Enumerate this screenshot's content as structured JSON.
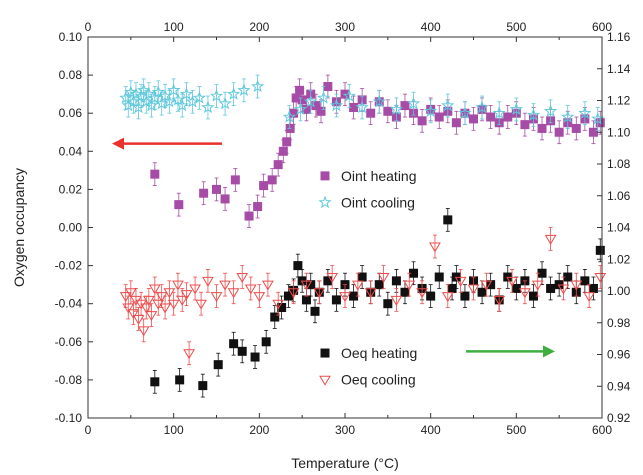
{
  "chart_data": {
    "type": "scatter",
    "xlabel": "Temperature (°C)",
    "ylabel": "Oxygen occupancy",
    "x_range": [
      0,
      600
    ],
    "y_left_range": [
      -0.1,
      0.1
    ],
    "y_right_range": [
      0.92,
      1.16
    ],
    "x_ticks": [
      "0",
      "100",
      "200",
      "300",
      "400",
      "500",
      "600"
    ],
    "y_left_ticks": [
      "-0.10",
      "-0.08",
      "-0.06",
      "-0.04",
      "-0.02",
      "0.00",
      "0.02",
      "0.04",
      "0.06",
      "0.08",
      "0.10"
    ],
    "y_right_ticks": [
      "0.92",
      "0.94",
      "0.96",
      "0.98",
      "1.00",
      "1.02",
      "1.04",
      "1.06",
      "1.08",
      "1.10",
      "1.12",
      "1.14",
      "1.16"
    ],
    "grid": false,
    "legend_placement": "center-right",
    "arrows": [
      {
        "direction": "left",
        "color": "#e8322b",
        "meaning": "left axis"
      },
      {
        "direction": "right",
        "color": "#3fae3f",
        "meaning": "right axis"
      }
    ],
    "series": [
      {
        "name": "Oint heating",
        "marker": "square",
        "filled": true,
        "color": "#a64ca6",
        "axis": "left",
        "points": [
          [
            78,
            0.028
          ],
          [
            106,
            0.012
          ],
          [
            135,
            0.018
          ],
          [
            150,
            0.02
          ],
          [
            160,
            0.015
          ],
          [
            172,
            0.025
          ],
          [
            188,
            0.006
          ],
          [
            198,
            0.011
          ],
          [
            205,
            0.022
          ],
          [
            215,
            0.025
          ],
          [
            222,
            0.033
          ],
          [
            228,
            0.04
          ],
          [
            232,
            0.045
          ],
          [
            236,
            0.052
          ],
          [
            240,
            0.06
          ],
          [
            243,
            0.068
          ],
          [
            247,
            0.072
          ],
          [
            250,
            0.067
          ],
          [
            255,
            0.062
          ],
          [
            260,
            0.07
          ],
          [
            266,
            0.064
          ],
          [
            272,
            0.061
          ],
          [
            280,
            0.074
          ],
          [
            290,
            0.066
          ],
          [
            300,
            0.07
          ],
          [
            310,
            0.063
          ],
          [
            320,
            0.067
          ],
          [
            330,
            0.06
          ],
          [
            340,
            0.066
          ],
          [
            350,
            0.061
          ],
          [
            360,
            0.058
          ],
          [
            370,
            0.064
          ],
          [
            380,
            0.06
          ],
          [
            390,
            0.056
          ],
          [
            400,
            0.062
          ],
          [
            410,
            0.058
          ],
          [
            420,
            0.061
          ],
          [
            430,
            0.055
          ],
          [
            440,
            0.06
          ],
          [
            450,
            0.057
          ],
          [
            460,
            0.062
          ],
          [
            470,
            0.058
          ],
          [
            480,
            0.055
          ],
          [
            490,
            0.058
          ],
          [
            500,
            0.06
          ],
          [
            510,
            0.054
          ],
          [
            520,
            0.057
          ],
          [
            530,
            0.052
          ],
          [
            540,
            0.056
          ],
          [
            550,
            0.05
          ],
          [
            560,
            0.055
          ],
          [
            570,
            0.052
          ],
          [
            580,
            0.057
          ],
          [
            590,
            0.05
          ],
          [
            598,
            0.055
          ]
        ]
      },
      {
        "name": "Oint cooling",
        "marker": "star",
        "filled": false,
        "color": "#5ec8dc",
        "axis": "left",
        "points": [
          [
            44,
            0.068
          ],
          [
            47,
            0.064
          ],
          [
            50,
            0.071
          ],
          [
            53,
            0.066
          ],
          [
            56,
            0.07
          ],
          [
            59,
            0.063
          ],
          [
            62,
            0.069
          ],
          [
            65,
            0.072
          ],
          [
            68,
            0.066
          ],
          [
            71,
            0.07
          ],
          [
            74,
            0.064
          ],
          [
            78,
            0.068
          ],
          [
            82,
            0.071
          ],
          [
            86,
            0.065
          ],
          [
            90,
            0.069
          ],
          [
            95,
            0.066
          ],
          [
            100,
            0.072
          ],
          [
            105,
            0.067
          ],
          [
            110,
            0.064
          ],
          [
            115,
            0.07
          ],
          [
            122,
            0.066
          ],
          [
            130,
            0.068
          ],
          [
            140,
            0.063
          ],
          [
            150,
            0.069
          ],
          [
            160,
            0.065
          ],
          [
            170,
            0.07
          ],
          [
            182,
            0.072
          ],
          [
            198,
            0.074
          ],
          [
            235,
            0.058
          ],
          [
            248,
            0.062
          ],
          [
            260,
            0.066
          ],
          [
            275,
            0.068
          ],
          [
            290,
            0.064
          ],
          [
            305,
            0.069
          ],
          [
            320,
            0.063
          ],
          [
            340,
            0.066
          ],
          [
            360,
            0.062
          ],
          [
            380,
            0.065
          ],
          [
            400,
            0.061
          ],
          [
            420,
            0.064
          ],
          [
            440,
            0.06
          ],
          [
            460,
            0.063
          ],
          [
            480,
            0.06
          ],
          [
            500,
            0.062
          ],
          [
            520,
            0.059
          ],
          [
            540,
            0.061
          ],
          [
            560,
            0.058
          ],
          [
            580,
            0.06
          ],
          [
            595,
            0.057
          ]
        ]
      },
      {
        "name": "Oeq heating",
        "marker": "square",
        "filled": true,
        "color": "#111111",
        "axis": "left",
        "points": [
          [
            78,
            -0.081
          ],
          [
            107,
            -0.08
          ],
          [
            134,
            -0.083
          ],
          [
            152,
            -0.072
          ],
          [
            170,
            -0.061
          ],
          [
            180,
            -0.065
          ],
          [
            195,
            -0.068
          ],
          [
            208,
            -0.06
          ],
          [
            218,
            -0.047
          ],
          [
            226,
            -0.042
          ],
          [
            234,
            -0.036
          ],
          [
            240,
            -0.033
          ],
          [
            245,
            -0.02
          ],
          [
            250,
            -0.028
          ],
          [
            255,
            -0.038
          ],
          [
            260,
            -0.03
          ],
          [
            265,
            -0.044
          ],
          [
            270,
            -0.034
          ],
          [
            280,
            -0.028
          ],
          [
            290,
            -0.038
          ],
          [
            300,
            -0.03
          ],
          [
            310,
            -0.036
          ],
          [
            320,
            -0.026
          ],
          [
            330,
            -0.034
          ],
          [
            340,
            -0.03
          ],
          [
            350,
            -0.04
          ],
          [
            360,
            -0.028
          ],
          [
            370,
            -0.034
          ],
          [
            380,
            -0.024
          ],
          [
            390,
            -0.032
          ],
          [
            400,
            -0.036
          ],
          [
            410,
            -0.026
          ],
          [
            420,
            0.004
          ],
          [
            425,
            -0.032
          ],
          [
            430,
            -0.026
          ],
          [
            440,
            -0.036
          ],
          [
            450,
            -0.028
          ],
          [
            460,
            -0.034
          ],
          [
            470,
            -0.03
          ],
          [
            480,
            -0.038
          ],
          [
            490,
            -0.026
          ],
          [
            500,
            -0.032
          ],
          [
            510,
            -0.028
          ],
          [
            520,
            -0.036
          ],
          [
            530,
            -0.024
          ],
          [
            540,
            -0.032
          ],
          [
            550,
            -0.03
          ],
          [
            560,
            -0.026
          ],
          [
            570,
            -0.034
          ],
          [
            580,
            -0.028
          ],
          [
            590,
            -0.032
          ],
          [
            598,
            -0.012
          ]
        ]
      },
      {
        "name": "Oeq cooling",
        "marker": "triangle-down",
        "filled": false,
        "color": "#ee4c4c",
        "axis": "left",
        "points": [
          [
            44,
            -0.036
          ],
          [
            47,
            -0.042
          ],
          [
            50,
            -0.034
          ],
          [
            53,
            -0.045
          ],
          [
            56,
            -0.038
          ],
          [
            59,
            -0.048
          ],
          [
            62,
            -0.04
          ],
          [
            65,
            -0.054
          ],
          [
            68,
            -0.042
          ],
          [
            71,
            -0.038
          ],
          [
            74,
            -0.046
          ],
          [
            78,
            -0.032
          ],
          [
            82,
            -0.04
          ],
          [
            86,
            -0.036
          ],
          [
            90,
            -0.042
          ],
          [
            95,
            -0.034
          ],
          [
            100,
            -0.04
          ],
          [
            105,
            -0.03
          ],
          [
            110,
            -0.038
          ],
          [
            115,
            -0.035
          ],
          [
            118,
            -0.066
          ],
          [
            125,
            -0.032
          ],
          [
            132,
            -0.04
          ],
          [
            140,
            -0.028
          ],
          [
            150,
            -0.036
          ],
          [
            160,
            -0.03
          ],
          [
            170,
            -0.034
          ],
          [
            180,
            -0.026
          ],
          [
            190,
            -0.032
          ],
          [
            200,
            -0.036
          ],
          [
            210,
            -0.03
          ],
          [
            222,
            -0.04
          ],
          [
            240,
            -0.034
          ],
          [
            255,
            -0.03
          ],
          [
            270,
            -0.034
          ],
          [
            285,
            -0.026
          ],
          [
            300,
            -0.036
          ],
          [
            315,
            -0.03
          ],
          [
            330,
            -0.034
          ],
          [
            345,
            -0.026
          ],
          [
            360,
            -0.038
          ],
          [
            375,
            -0.03
          ],
          [
            390,
            -0.034
          ],
          [
            405,
            -0.01
          ],
          [
            420,
            -0.036
          ],
          [
            435,
            -0.028
          ],
          [
            450,
            -0.032
          ],
          [
            465,
            -0.03
          ],
          [
            480,
            -0.038
          ],
          [
            495,
            -0.028
          ],
          [
            510,
            -0.034
          ],
          [
            525,
            -0.03
          ],
          [
            540,
            -0.006
          ],
          [
            555,
            -0.032
          ],
          [
            570,
            -0.03
          ],
          [
            585,
            -0.036
          ],
          [
            598,
            -0.026
          ]
        ]
      }
    ]
  }
}
